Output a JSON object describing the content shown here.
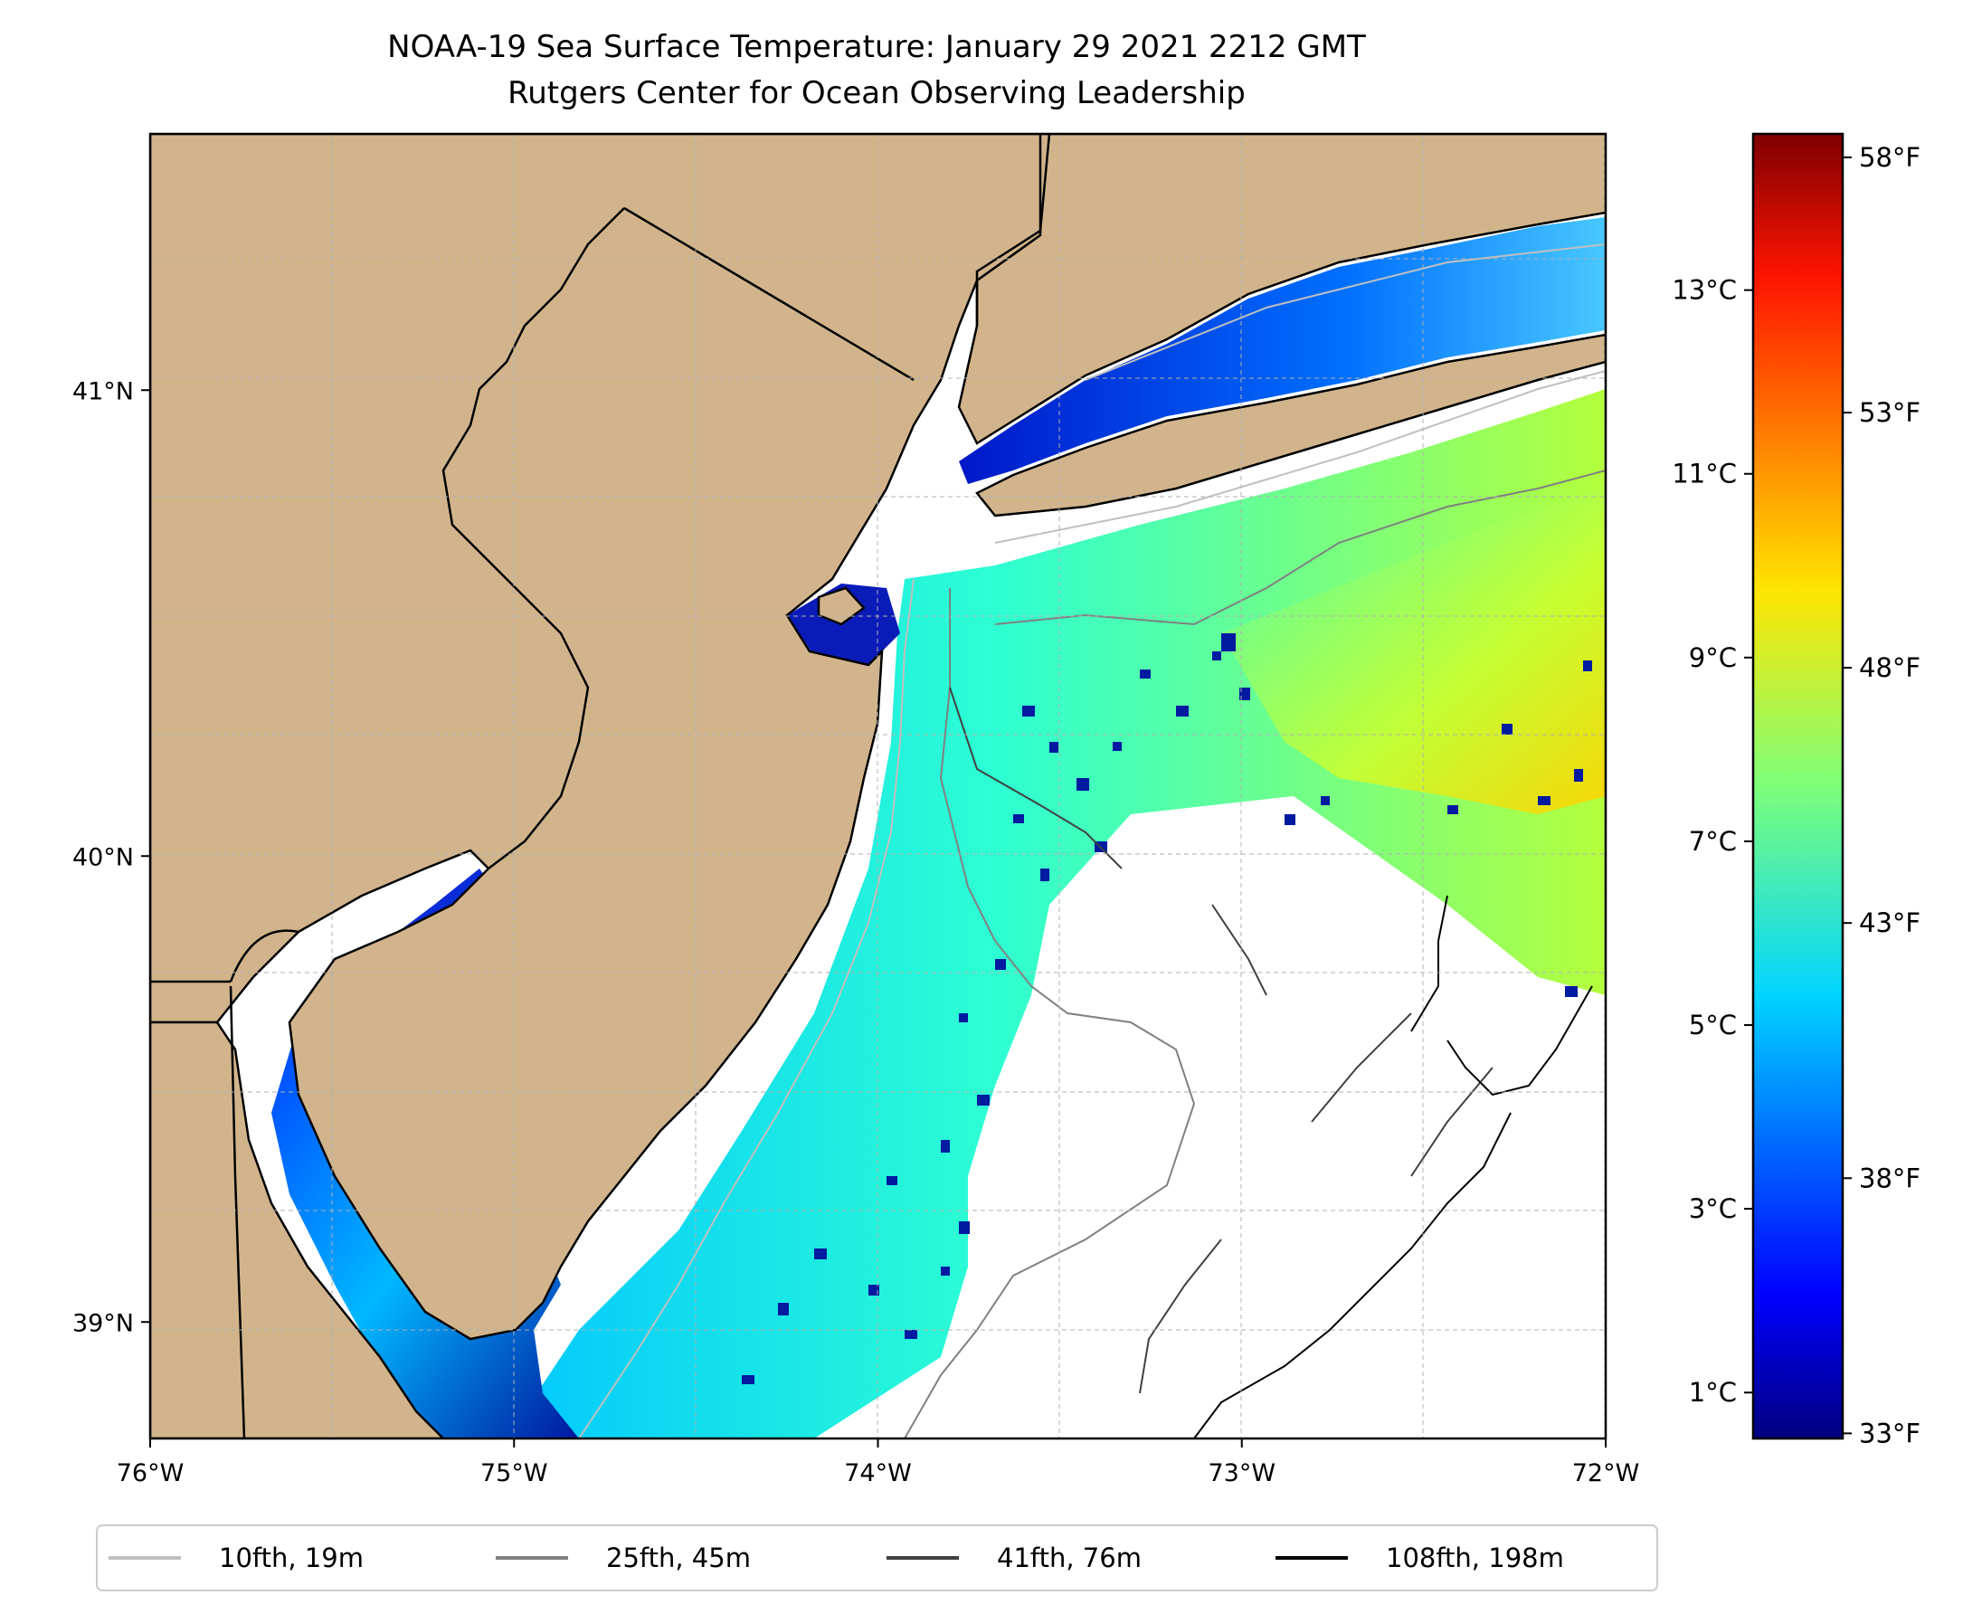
{
  "title": {
    "line1": "NOAA-19 Sea Surface Temperature: January 29 2021 2212 GMT",
    "line2": "Rutgers Center for Ocean Observing Leadership"
  },
  "map": {
    "lon_range": [
      -76,
      -72
    ],
    "lat_range": [
      38.75,
      41.55
    ],
    "land_color": "#d2b48c",
    "no_data_color": "#ffffff",
    "gridlines": "dashed gray",
    "x_ticks": [
      {
        "lon": -76,
        "label": "76°W"
      },
      {
        "lon": -75,
        "label": "75°W"
      },
      {
        "lon": -74,
        "label": "74°W"
      },
      {
        "lon": -73,
        "label": "73°W"
      },
      {
        "lon": -72,
        "label": "72°W"
      }
    ],
    "y_ticks": [
      {
        "lat": 41,
        "label": "41°N"
      },
      {
        "lat": 40,
        "label": "40°N"
      },
      {
        "lat": 39,
        "label": "39°N"
      }
    ]
  },
  "colorbar": {
    "colormap": "jet",
    "celsius_range": [
      0.5,
      14.7
    ],
    "celsius_ticks": [
      {
        "value": 1,
        "label": "1°C"
      },
      {
        "value": 3,
        "label": "3°C"
      },
      {
        "value": 5,
        "label": "5°C"
      },
      {
        "value": 7,
        "label": "7°C"
      },
      {
        "value": 9,
        "label": "9°C"
      },
      {
        "value": 11,
        "label": "11°C"
      },
      {
        "value": 13,
        "label": "13°C"
      }
    ],
    "fahrenheit_ticks": [
      {
        "value": 33,
        "label": "33°F"
      },
      {
        "value": 38,
        "label": "38°F"
      },
      {
        "value": 43,
        "label": "43°F"
      },
      {
        "value": 48,
        "label": "48°F"
      },
      {
        "value": 53,
        "label": "53°F"
      },
      {
        "value": 58,
        "label": "58°F"
      }
    ]
  },
  "legend": {
    "placement": "bottom-center",
    "entries": [
      {
        "label": "10fth, 19m",
        "color": "#c0c0c0"
      },
      {
        "label": "25fth, 45m",
        "color": "#808080"
      },
      {
        "label": "41fth, 76m",
        "color": "#404040"
      },
      {
        "label": "108fth, 198m",
        "color": "#000000"
      }
    ]
  }
}
